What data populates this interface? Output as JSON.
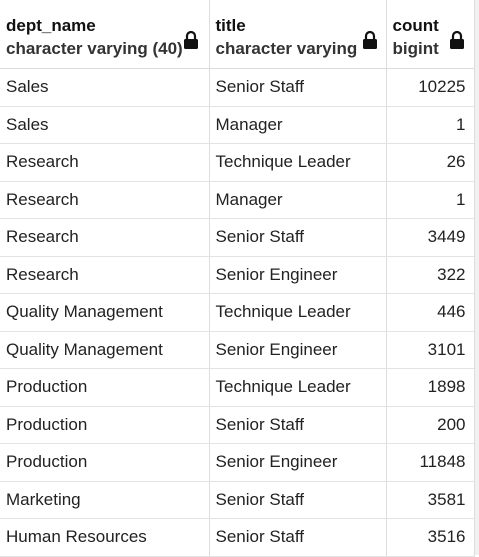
{
  "columns": [
    {
      "name": "dept_name",
      "type": "character varying (40)",
      "icon": "lock-icon"
    },
    {
      "name": "title",
      "type": "character varying",
      "icon": "lock-icon"
    },
    {
      "name": "count",
      "type": "bigint",
      "icon": "lock-icon"
    }
  ],
  "rows": [
    {
      "dept_name": "Sales",
      "title": "Senior Staff",
      "count": "10225"
    },
    {
      "dept_name": "Sales",
      "title": "Manager",
      "count": "1"
    },
    {
      "dept_name": "Research",
      "title": "Technique Leader",
      "count": "26"
    },
    {
      "dept_name": "Research",
      "title": "Manager",
      "count": "1"
    },
    {
      "dept_name": "Research",
      "title": "Senior Staff",
      "count": "3449"
    },
    {
      "dept_name": "Research",
      "title": "Senior Engineer",
      "count": "322"
    },
    {
      "dept_name": "Quality Management",
      "title": "Technique Leader",
      "count": "446"
    },
    {
      "dept_name": "Quality Management",
      "title": "Senior Engineer",
      "count": "3101"
    },
    {
      "dept_name": "Production",
      "title": "Technique Leader",
      "count": "1898"
    },
    {
      "dept_name": "Production",
      "title": "Senior Staff",
      "count": "200"
    },
    {
      "dept_name": "Production",
      "title": "Senior Engineer",
      "count": "11848"
    },
    {
      "dept_name": "Marketing",
      "title": "Senior Staff",
      "count": "3581"
    },
    {
      "dept_name": "Human Resources",
      "title": "Senior Staff",
      "count": "3516"
    }
  ]
}
